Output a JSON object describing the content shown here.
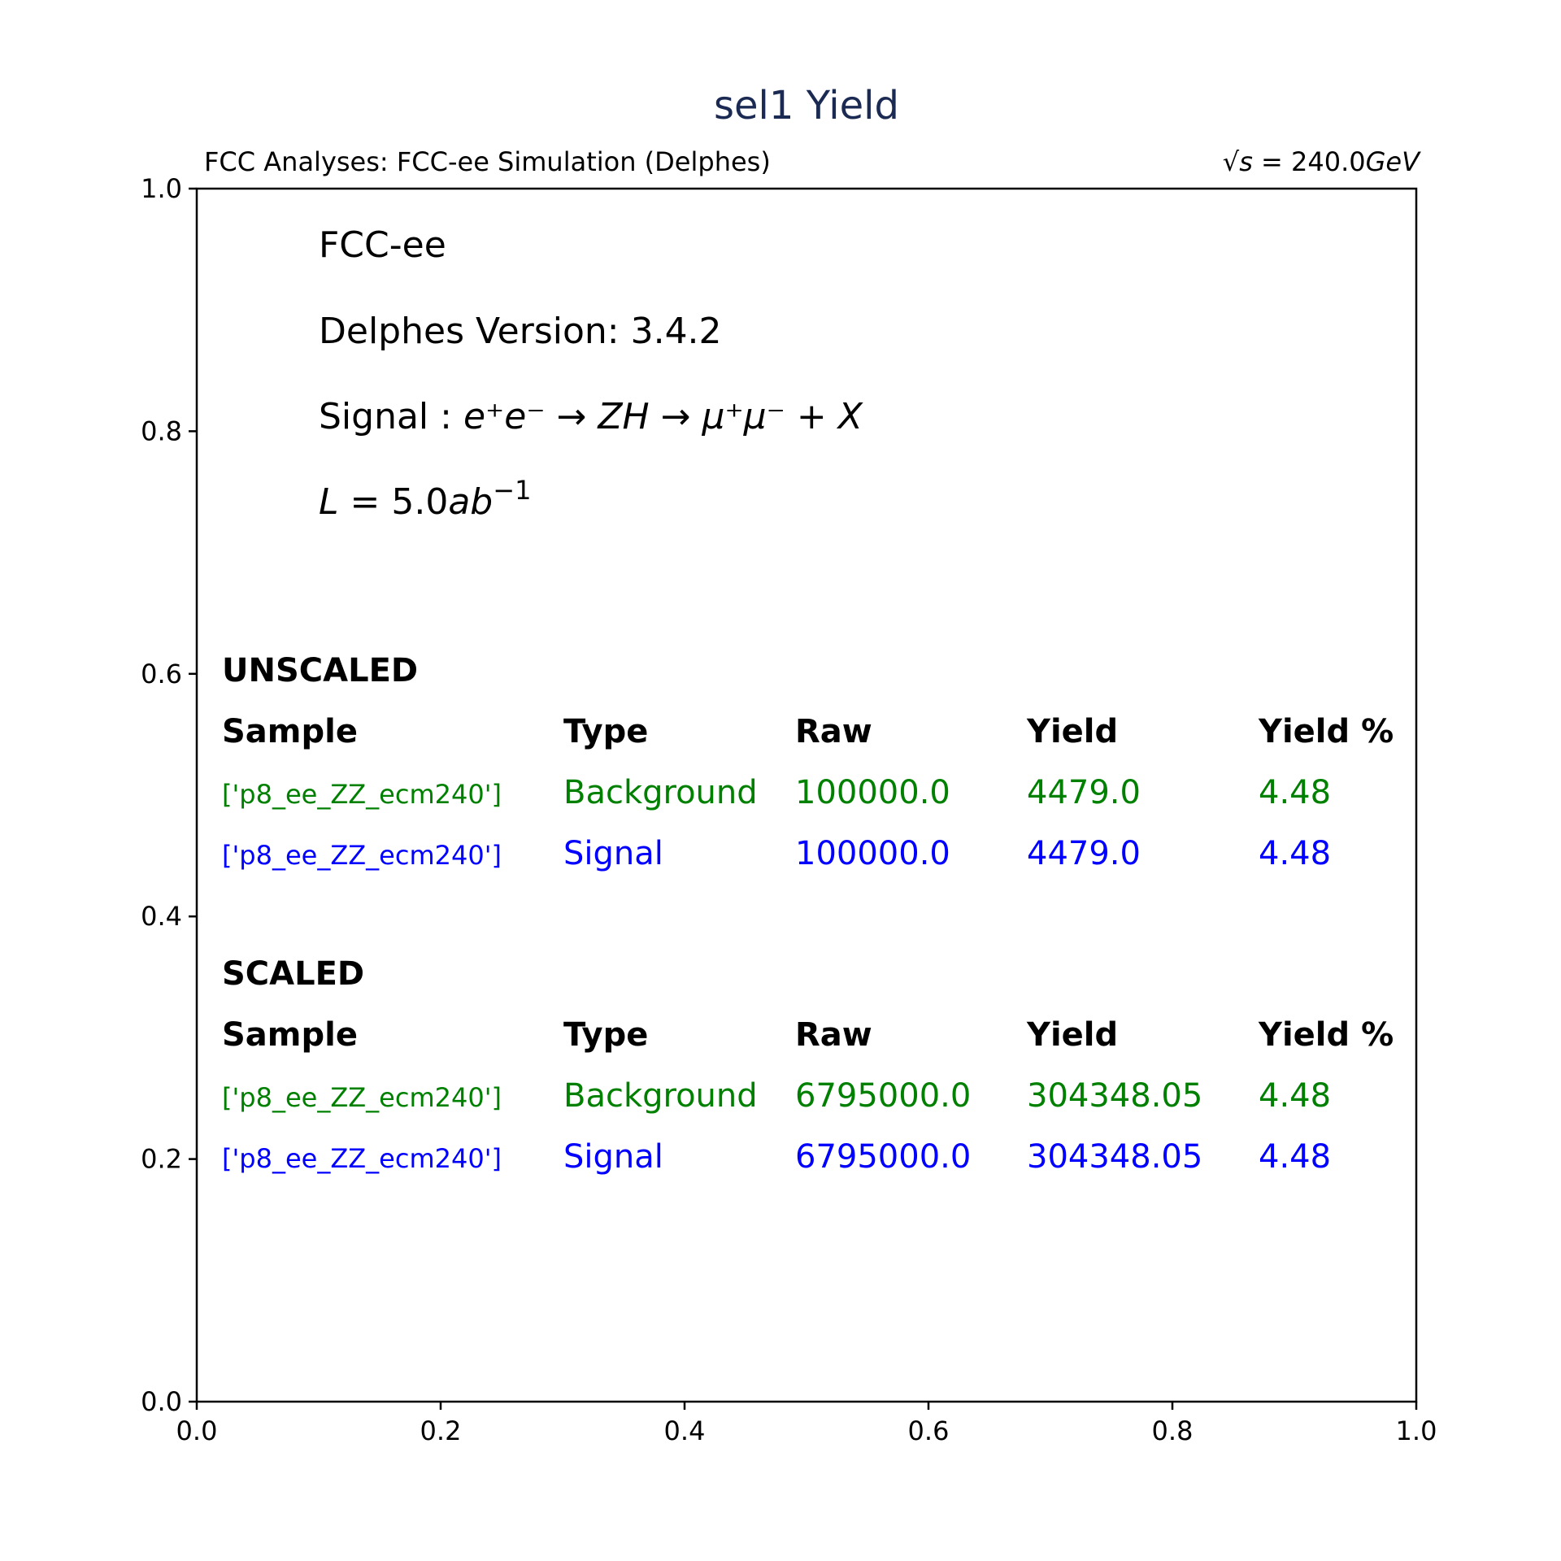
{
  "chart_data": {
    "type": "table",
    "title": "sel1 Yield",
    "top_left_text": "FCC Analyses: FCC-ee Simulation (Delphes)",
    "top_right_text": {
      "prefix": "√s",
      "suffix": " = 240.0",
      "unit": "GeV"
    },
    "xlim": [
      0,
      1
    ],
    "ylim": [
      0,
      1
    ],
    "x_ticks": [
      "0.0",
      "0.2",
      "0.4",
      "0.6",
      "0.8",
      "1.0"
    ],
    "y_ticks": [
      "0.0",
      "0.2",
      "0.4",
      "0.6",
      "0.8",
      "1.0"
    ],
    "grid": false,
    "info": {
      "detector": "FCC-ee",
      "delphes": "Delphes Version: 3.4.2",
      "signal_prefix": "Signal : ",
      "signal_process": "e⁺e⁻ → ZH → μ⁺μ⁻ + X",
      "luminosity_L": "L",
      "luminosity_eq": " = 5.0",
      "luminosity_unit": "ab",
      "luminosity_exp": "−1"
    },
    "colors": {
      "background": "#008000",
      "signal": "#0000ff",
      "title": "#1b2a52"
    },
    "columns": [
      "Sample",
      "Type",
      "Raw",
      "Yield",
      "Yield %"
    ],
    "tables": [
      {
        "heading": "UNSCALED",
        "rows": [
          {
            "sample": "['p8_ee_ZZ_ecm240']",
            "type": "Background",
            "raw": "100000.0",
            "yield": "4479.0",
            "yield_pct": "4.48"
          },
          {
            "sample": "['p8_ee_ZZ_ecm240']",
            "type": "Signal",
            "raw": "100000.0",
            "yield": "4479.0",
            "yield_pct": "4.48"
          }
        ]
      },
      {
        "heading": "SCALED",
        "rows": [
          {
            "sample": "['p8_ee_ZZ_ecm240']",
            "type": "Background",
            "raw": "6795000.0",
            "yield": "304348.05",
            "yield_pct": "4.48"
          },
          {
            "sample": "['p8_ee_ZZ_ecm240']",
            "type": "Signal",
            "raw": "6795000.0",
            "yield": "304348.05",
            "yield_pct": "4.48"
          }
        ]
      }
    ]
  }
}
